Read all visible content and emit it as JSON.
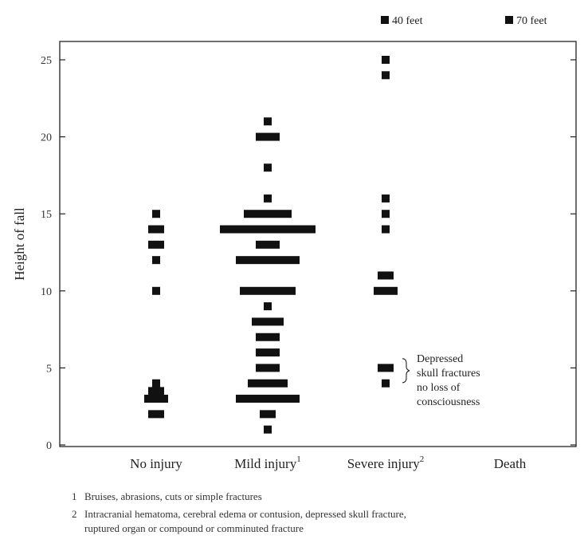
{
  "chart_data": {
    "type": "scatter",
    "ylabel": "Height of fall",
    "ylim": [
      0,
      27
    ],
    "yticks": [
      0,
      5,
      10,
      15,
      20,
      25
    ],
    "categories": [
      {
        "label": "No injury",
        "sup": ""
      },
      {
        "label": "Mild injury",
        "sup": "1"
      },
      {
        "label": "Severe injury",
        "sup": "2"
      },
      {
        "label": "Death",
        "sup": ""
      }
    ],
    "points": [
      {
        "cat": 0,
        "y": 15,
        "n": 1
      },
      {
        "cat": 0,
        "y": 14,
        "n": 2
      },
      {
        "cat": 0,
        "y": 13,
        "n": 2
      },
      {
        "cat": 0,
        "y": 12,
        "n": 1
      },
      {
        "cat": 0,
        "y": 10,
        "n": 1
      },
      {
        "cat": 0,
        "y": 4,
        "n": 1
      },
      {
        "cat": 0,
        "y": 3.5,
        "n": 2
      },
      {
        "cat": 0,
        "y": 3,
        "n": 3
      },
      {
        "cat": 0,
        "y": 2,
        "n": 2
      },
      {
        "cat": 1,
        "y": 21,
        "n": 1
      },
      {
        "cat": 1,
        "y": 20,
        "n": 3
      },
      {
        "cat": 1,
        "y": 18,
        "n": 1
      },
      {
        "cat": 1,
        "y": 16,
        "n": 1
      },
      {
        "cat": 1,
        "y": 15,
        "n": 6
      },
      {
        "cat": 1,
        "y": 14,
        "n": 12
      },
      {
        "cat": 1,
        "y": 13,
        "n": 3
      },
      {
        "cat": 1,
        "y": 12,
        "n": 8
      },
      {
        "cat": 1,
        "y": 10,
        "n": 7
      },
      {
        "cat": 1,
        "y": 9,
        "n": 1
      },
      {
        "cat": 1,
        "y": 8,
        "n": 4
      },
      {
        "cat": 1,
        "y": 7,
        "n": 3
      },
      {
        "cat": 1,
        "y": 6,
        "n": 3
      },
      {
        "cat": 1,
        "y": 5,
        "n": 3
      },
      {
        "cat": 1,
        "y": 4,
        "n": 5
      },
      {
        "cat": 1,
        "y": 3,
        "n": 8
      },
      {
        "cat": 1,
        "y": 2,
        "n": 2
      },
      {
        "cat": 1,
        "y": 1,
        "n": 1
      },
      {
        "cat": 2,
        "y": 25,
        "n": 1
      },
      {
        "cat": 2,
        "y": 24,
        "n": 1
      },
      {
        "cat": 2,
        "y": 16,
        "n": 1
      },
      {
        "cat": 2,
        "y": 15,
        "n": 1
      },
      {
        "cat": 2,
        "y": 14,
        "n": 1
      },
      {
        "cat": 2,
        "y": 11,
        "n": 2
      },
      {
        "cat": 2,
        "y": 10,
        "n": 3
      },
      {
        "cat": 2,
        "y": 5,
        "n": 2
      },
      {
        "cat": 2,
        "y": 4,
        "n": 1
      }
    ],
    "legend": [
      {
        "label": "40 feet",
        "category": "Severe injury"
      },
      {
        "label": "70 feet",
        "category": "Death"
      }
    ],
    "annotation": [
      "Depressed",
      "skull fractures",
      "no loss of",
      "consciousness"
    ],
    "grid": false,
    "color": "#111111"
  },
  "footnotes": [
    {
      "num": "1",
      "lines": [
        "Bruises, abrasions, cuts or simple fractures"
      ]
    },
    {
      "num": "2",
      "lines": [
        "Intracranial hematoma, cerebral edema or contusion, depressed skull fracture,",
        "ruptured organ or compound or comminuted fracture"
      ]
    }
  ]
}
